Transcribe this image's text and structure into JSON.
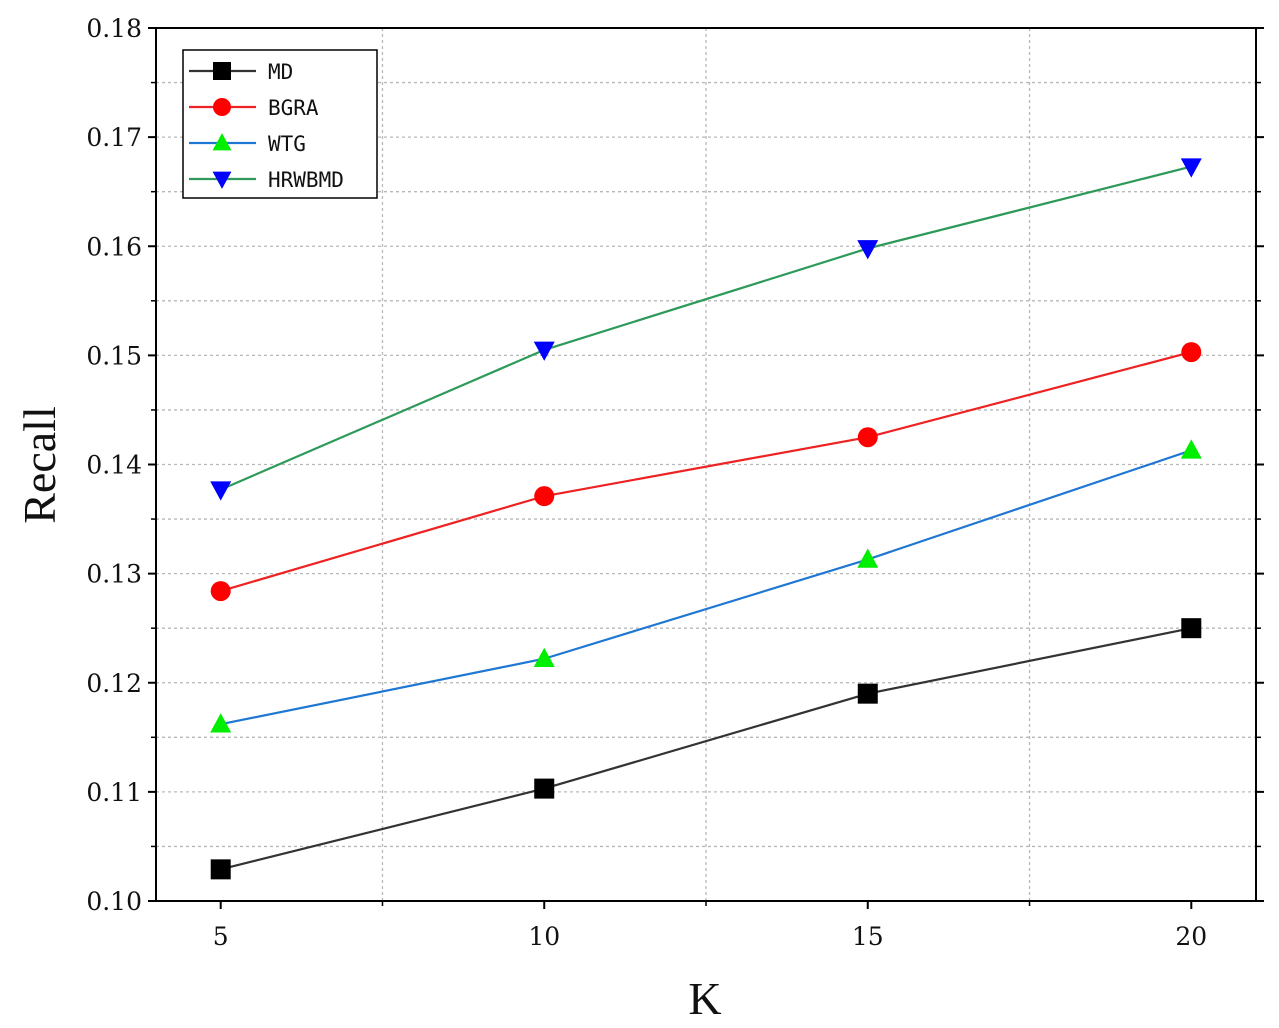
{
  "chart_data": {
    "type": "line",
    "xlabel": "K",
    "ylabel": "Recall",
    "x": [
      5,
      10,
      15,
      20
    ],
    "xticks": [
      "5",
      "10",
      "15",
      "20"
    ],
    "yticks": [
      "0.10",
      "0.11",
      "0.12",
      "0.13",
      "0.14",
      "0.15",
      "0.16",
      "0.17",
      "0.18"
    ],
    "xlim": [
      4,
      21
    ],
    "ylim": [
      0.1,
      0.18
    ],
    "grid": true,
    "legend_position": "top-left",
    "series": [
      {
        "name": "MD",
        "values": [
          0.1029,
          0.1103,
          0.119,
          0.125
        ],
        "color": "#000000",
        "line_color": "#333333",
        "marker": "square"
      },
      {
        "name": "BGRA",
        "values": [
          0.1284,
          0.1371,
          0.1425,
          0.1503
        ],
        "color": "#ff0000",
        "line_color": "#ee2222",
        "marker": "circle"
      },
      {
        "name": "WTG",
        "values": [
          0.1162,
          0.1222,
          0.1313,
          0.1413
        ],
        "color": "#00ee00",
        "line_color": "#1f77d4",
        "marker": "triangle-up"
      },
      {
        "name": "HRWBMD",
        "values": [
          0.1377,
          0.1505,
          0.1598,
          0.1673
        ],
        "color": "#0000ff",
        "line_color": "#2e9a5a",
        "marker": "triangle-down"
      }
    ]
  }
}
